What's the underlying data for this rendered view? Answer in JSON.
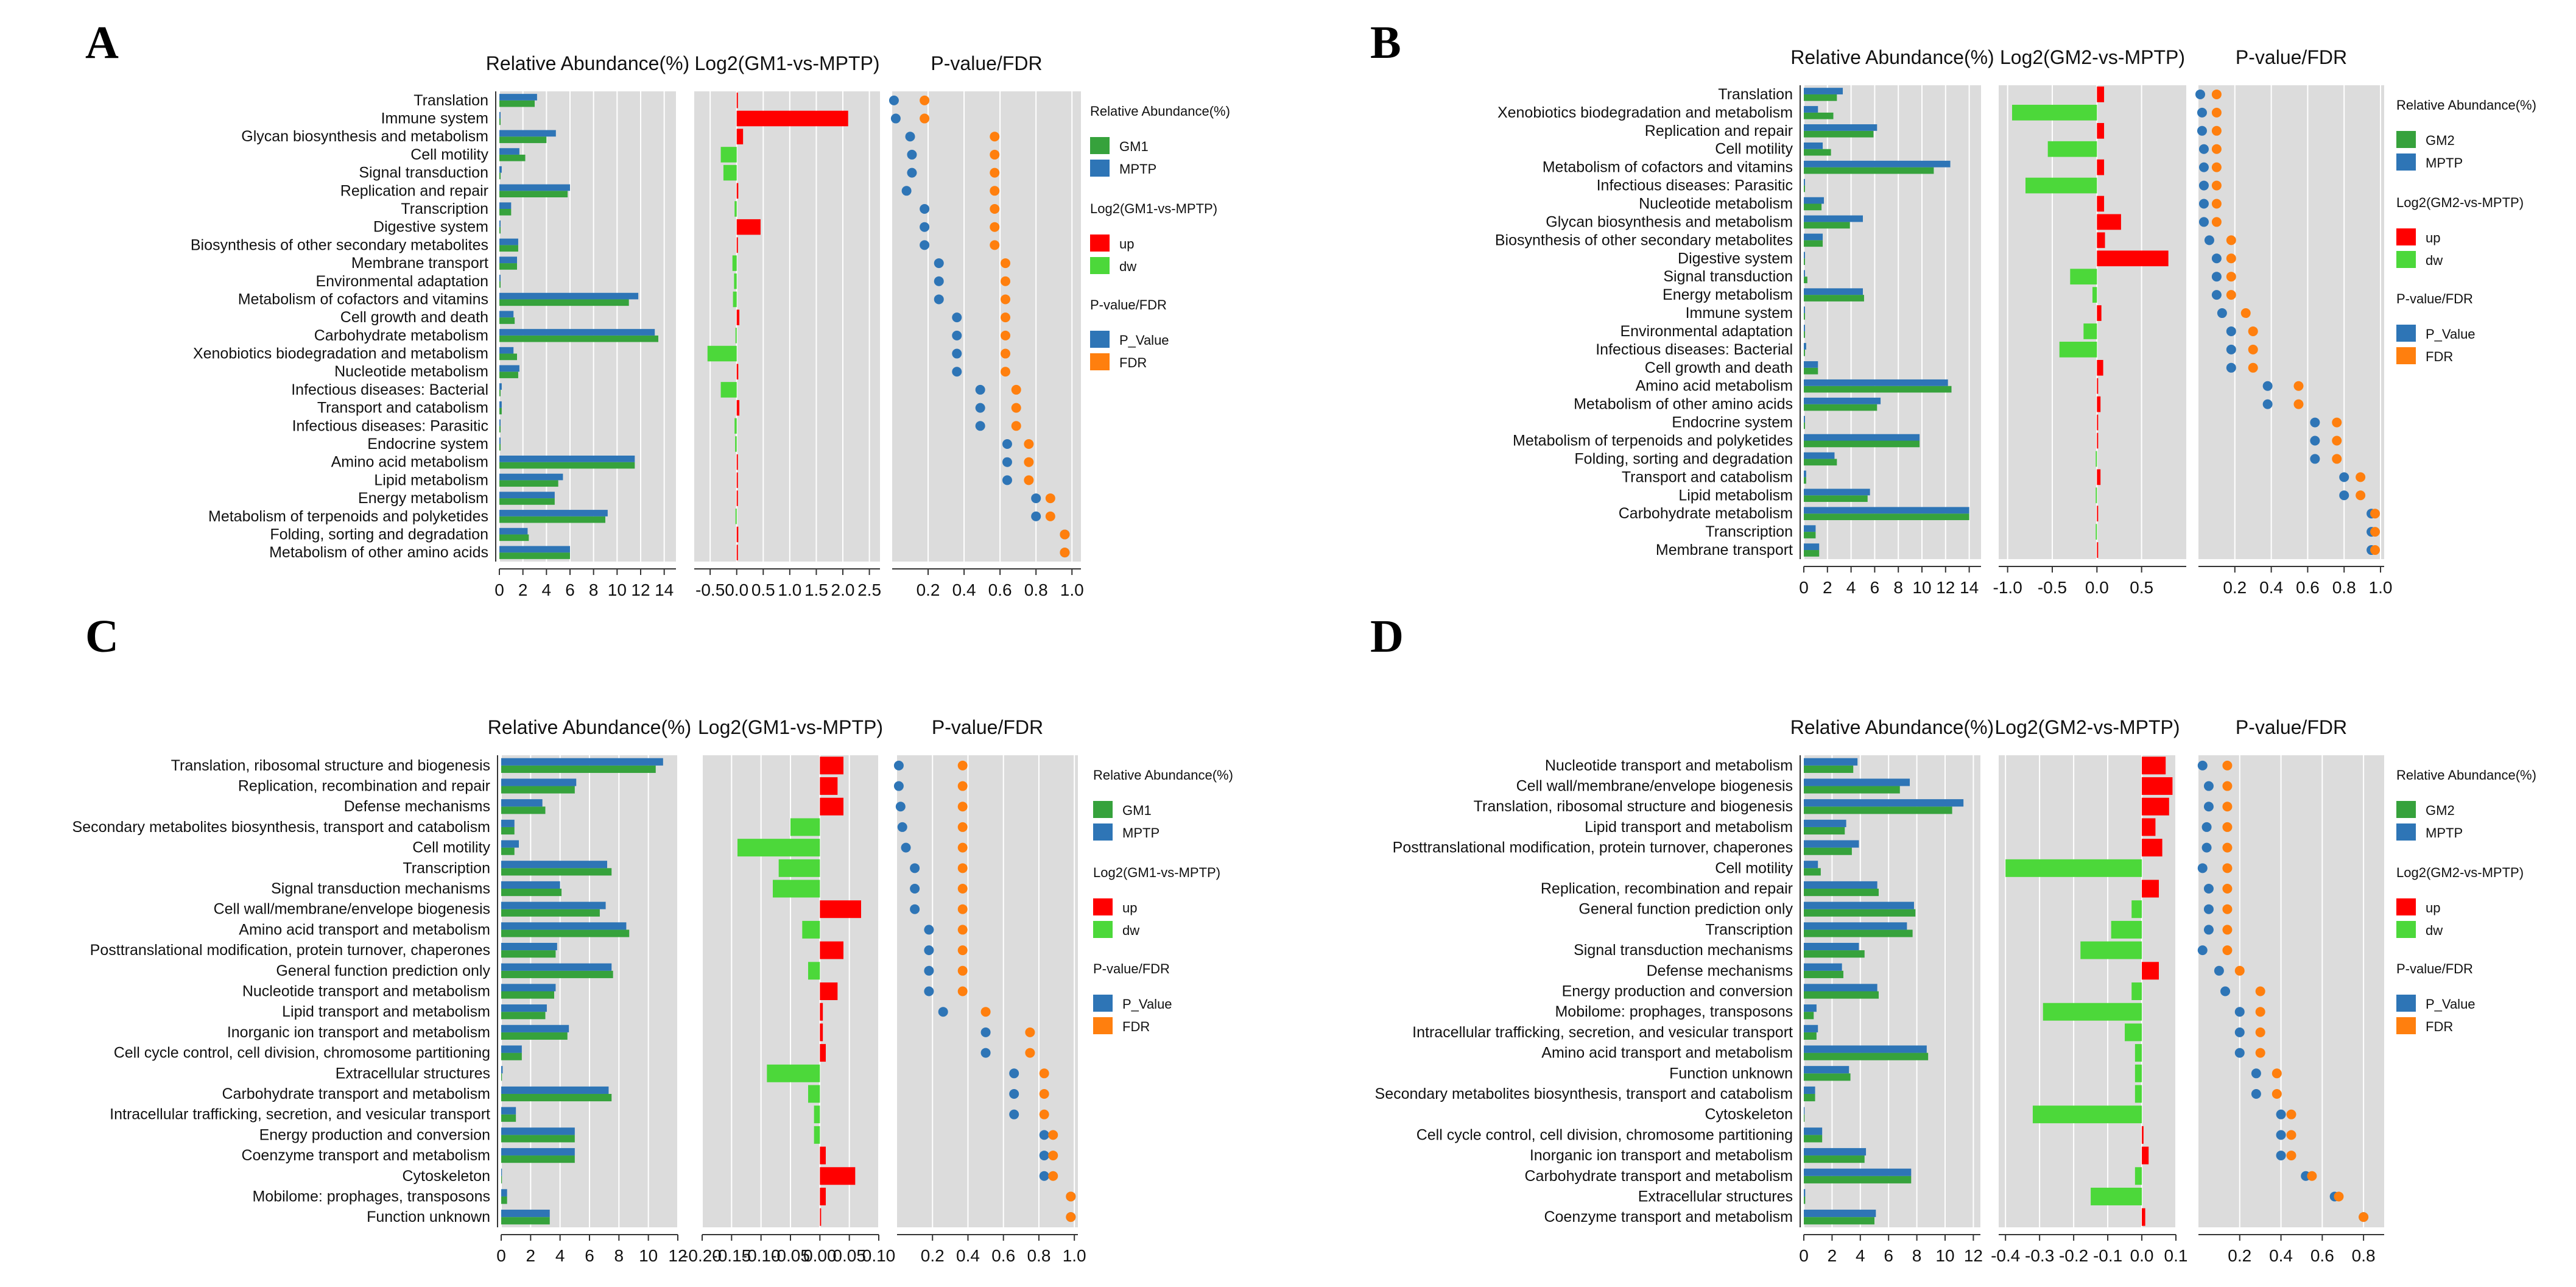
{
  "colors": {
    "groupA": "#36A23C",
    "groupB": "#2E75B6",
    "up": "#FF0000",
    "dw": "#4CD83A",
    "pval": "#2E75B6",
    "fdr": "#FF7F0E",
    "bg": "#DCDCDC"
  },
  "chart_data": [
    {
      "type": "bar",
      "panel": "A",
      "title_abundance": "Relative Abundance(%)",
      "title_log2": "Log2(GM1-vs-MPTP)",
      "title_pval": "P-value/FDR",
      "group_a": "GM1",
      "group_b": "MPTP",
      "categories": [
        "Translation",
        "Immune system",
        "Glycan biosynthesis and metabolism",
        "Cell motility",
        "Signal transduction",
        "Replication and repair",
        "Transcription",
        "Digestive system",
        "Biosynthesis of other secondary metabolites",
        "Membrane transport",
        "Environmental adaptation",
        "Metabolism of cofactors and vitamins",
        "Cell growth and death",
        "Carbohydrate metabolism",
        "Xenobiotics biodegradation and metabolism",
        "Nucleotide metabolism",
        "Infectious diseases: Bacterial",
        "Transport and catabolism",
        "Infectious diseases: Parasitic",
        "Endocrine system",
        "Amino acid metabolism",
        "Lipid metabolism",
        "Energy metabolism",
        "Metabolism of terpenoids and polyketides",
        "Folding, sorting and degradation",
        "Metabolism of other amino acids"
      ],
      "series": [
        {
          "name": "GM1",
          "values": [
            3.0,
            0.1,
            4.0,
            2.2,
            0.1,
            5.8,
            1.0,
            0.1,
            1.6,
            1.5,
            0.1,
            11.0,
            1.3,
            13.5,
            1.5,
            1.6,
            0.1,
            0.2,
            0.1,
            0.1,
            11.5,
            5.0,
            4.7,
            9.0,
            2.5,
            6.0
          ]
        },
        {
          "name": "MPTP",
          "values": [
            3.2,
            0.1,
            4.8,
            1.7,
            0.2,
            6.0,
            1.0,
            0.1,
            1.6,
            1.5,
            0.1,
            11.8,
            1.2,
            13.2,
            1.2,
            1.7,
            0.2,
            0.2,
            0.1,
            0.1,
            11.5,
            5.4,
            4.7,
            9.2,
            2.4,
            6.0
          ]
        },
        {
          "name": "Log2(GM1-vs-MPTP)",
          "values": [
            0.02,
            2.1,
            0.12,
            -0.3,
            -0.25,
            0.03,
            -0.04,
            0.45,
            0.01,
            -0.08,
            -0.05,
            -0.07,
            0.05,
            -0.02,
            -0.55,
            0.03,
            -0.3,
            0.05,
            -0.04,
            -0.03,
            0.0,
            0.01,
            0.0,
            -0.02,
            0.03,
            0.0
          ]
        },
        {
          "name": "P_Value",
          "values": [
            0.01,
            0.02,
            0.1,
            0.11,
            0.11,
            0.08,
            0.18,
            0.18,
            0.18,
            0.26,
            0.26,
            0.26,
            0.36,
            0.36,
            0.36,
            0.36,
            0.49,
            0.49,
            0.49,
            0.64,
            0.64,
            0.64,
            0.8,
            0.8,
            0.96,
            0.96
          ]
        },
        {
          "name": "FDR",
          "values": [
            0.18,
            0.18,
            0.57,
            0.57,
            0.57,
            0.57,
            0.57,
            0.57,
            0.57,
            0.63,
            0.63,
            0.63,
            0.63,
            0.63,
            0.63,
            0.63,
            0.69,
            0.69,
            0.69,
            0.76,
            0.76,
            0.76,
            0.88,
            0.88,
            0.96,
            0.96
          ]
        }
      ],
      "abundance_ticks": [
        "0",
        "2",
        "4",
        "6",
        "8",
        "10",
        "12",
        "14"
      ],
      "abundance_lim": [
        0,
        15
      ],
      "log2_ticks": [
        "-0.5",
        "0.0",
        "0.5",
        "1.0",
        "1.5",
        "2.0",
        "2.5"
      ],
      "log2_lim": [
        -0.8,
        2.7
      ],
      "pval_ticks": [
        "0.2",
        "0.4",
        "0.6",
        "0.8",
        "1.0"
      ],
      "pval_lim": [
        0,
        1.05
      ],
      "legend_abundance_title": "Relative Abundance(%)",
      "legend_log2_title": "Log2(GM1-vs-MPTP)",
      "legend_up": "up",
      "legend_dw": "dw",
      "legend_pval_title": "P-value/FDR",
      "legend_p": "P_Value",
      "legend_fdr": "FDR"
    },
    {
      "type": "bar",
      "panel": "B",
      "title_abundance": "Relative Abundance(%)",
      "title_log2": "Log2(GM2-vs-MPTP)",
      "title_pval": "P-value/FDR",
      "group_a": "GM2",
      "group_b": "MPTP",
      "categories": [
        "Translation",
        "Xenobiotics biodegradation and metabolism",
        "Replication and repair",
        "Cell motility",
        "Metabolism of cofactors and vitamins",
        "Infectious diseases: Parasitic",
        "Nucleotide metabolism",
        "Glycan biosynthesis and metabolism",
        "Biosynthesis of other secondary metabolites",
        "Digestive system",
        "Signal transduction",
        "Energy metabolism",
        "Immune system",
        "Environmental adaptation",
        "Infectious diseases: Bacterial",
        "Cell growth and death",
        "Amino acid metabolism",
        "Metabolism of other amino acids",
        "Endocrine system",
        "Metabolism of terpenoids and polyketides",
        "Folding, sorting and degradation",
        "Transport and catabolism",
        "Lipid metabolism",
        "Carbohydrate metabolism",
        "Transcription",
        "Membrane transport"
      ],
      "series": [
        {
          "name": "GM2",
          "values": [
            2.8,
            2.5,
            5.9,
            2.3,
            11.0,
            0.1,
            1.5,
            3.9,
            1.6,
            0.1,
            0.3,
            5.1,
            0.1,
            0.1,
            0.1,
            1.2,
            12.5,
            6.2,
            0.1,
            9.8,
            2.8,
            0.2,
            5.4,
            14.0,
            1.0,
            1.3
          ]
        },
        {
          "name": "MPTP",
          "values": [
            3.3,
            1.2,
            6.2,
            1.6,
            12.4,
            0.1,
            1.7,
            5.0,
            1.6,
            0.1,
            0.1,
            5.0,
            0.1,
            0.1,
            0.2,
            1.2,
            12.2,
            6.5,
            0.1,
            9.8,
            2.6,
            0.2,
            5.6,
            14.0,
            1.0,
            1.3
          ]
        },
        {
          "name": "Log2(GM2-vs-MPTP)",
          "values": [
            0.08,
            -0.95,
            0.08,
            -0.55,
            0.08,
            -0.8,
            0.08,
            0.27,
            0.09,
            0.8,
            -0.3,
            -0.05,
            0.05,
            -0.15,
            -0.42,
            0.07,
            0.0,
            0.04,
            0.0,
            0.0,
            -0.01,
            0.04,
            -0.01,
            0.0,
            -0.01,
            0.0
          ]
        },
        {
          "name": "P_Value",
          "values": [
            0.01,
            0.02,
            0.02,
            0.03,
            0.03,
            0.03,
            0.03,
            0.03,
            0.06,
            0.1,
            0.1,
            0.1,
            0.13,
            0.18,
            0.18,
            0.18,
            0.38,
            0.38,
            0.64,
            0.64,
            0.64,
            0.8,
            0.8,
            0.95,
            0.95,
            0.95
          ]
        },
        {
          "name": "FDR",
          "values": [
            0.1,
            0.1,
            0.1,
            0.1,
            0.1,
            0.1,
            0.1,
            0.1,
            0.18,
            0.18,
            0.18,
            0.18,
            0.26,
            0.3,
            0.3,
            0.3,
            0.55,
            0.55,
            0.76,
            0.76,
            0.76,
            0.89,
            0.89,
            0.97,
            0.97,
            0.97
          ]
        }
      ],
      "abundance_ticks": [
        "0",
        "2",
        "4",
        "6",
        "8",
        "10",
        "12",
        "14"
      ],
      "abundance_lim": [
        0,
        15
      ],
      "log2_ticks": [
        "-1.0",
        "-0.5",
        "0.0",
        "0.5"
      ],
      "log2_lim": [
        -1.1,
        1.0
      ],
      "pval_ticks": [
        "0.2",
        "0.4",
        "0.6",
        "0.8",
        "1.0"
      ],
      "pval_lim": [
        0,
        1.02
      ],
      "legend_abundance_title": "Relative Abundance(%)",
      "legend_log2_title": "Log2(GM2-vs-MPTP)",
      "legend_up": "up",
      "legend_dw": "dw",
      "legend_pval_title": "P-value/FDR",
      "legend_p": "P_Value",
      "legend_fdr": "FDR"
    },
    {
      "type": "bar",
      "panel": "C",
      "title_abundance": "Relative Abundance(%)",
      "title_log2": "Log2(GM1-vs-MPTP)",
      "title_pval": "P-value/FDR",
      "group_a": "GM1",
      "group_b": "MPTP",
      "categories": [
        "Translation, ribosomal structure and biogenesis",
        "Replication, recombination and repair",
        "Defense mechanisms",
        "Secondary metabolites biosynthesis, transport and catabolism",
        "Cell motility",
        "Transcription",
        "Signal transduction mechanisms",
        "Cell wall/membrane/envelope biogenesis",
        "Amino acid transport and metabolism",
        "Posttranslational modification, protein turnover, chaperones",
        "General function prediction only",
        "Nucleotide transport and metabolism",
        "Lipid transport and metabolism",
        "Inorganic ion transport and metabolism",
        "Cell cycle control, cell division, chromosome partitioning",
        "Extracellular structures",
        "Carbohydrate transport and metabolism",
        "Intracellular trafficking, secretion, and vesicular transport",
        "Energy production and conversion",
        "Coenzyme transport and metabolism",
        "Cytoskeleton",
        "Mobilome: prophages, transposons",
        "Function unknown"
      ],
      "series": [
        {
          "name": "GM1",
          "values": [
            10.5,
            5.0,
            3.0,
            0.9,
            0.9,
            7.5,
            4.1,
            6.7,
            8.7,
            3.7,
            7.6,
            3.6,
            3.0,
            4.5,
            1.4,
            0.05,
            7.5,
            1.0,
            5.0,
            5.0,
            0.05,
            0.4,
            3.3
          ]
        },
        {
          "name": "MPTP",
          "values": [
            11.0,
            5.1,
            2.8,
            0.9,
            1.2,
            7.2,
            4.0,
            7.1,
            8.5,
            3.8,
            7.5,
            3.7,
            3.1,
            4.6,
            1.4,
            0.1,
            7.3,
            1.0,
            5.0,
            5.0,
            0.05,
            0.4,
            3.3
          ]
        },
        {
          "name": "Log2(GM1-vs-MPTP)",
          "values": [
            0.04,
            0.03,
            0.04,
            -0.05,
            -0.14,
            -0.07,
            -0.08,
            0.07,
            -0.03,
            0.04,
            -0.02,
            0.03,
            0.005,
            0.005,
            0.01,
            -0.09,
            -0.02,
            -0.01,
            -0.01,
            0.01,
            0.06,
            0.01,
            0.0
          ]
        },
        {
          "name": "P_Value",
          "values": [
            0.01,
            0.01,
            0.02,
            0.03,
            0.05,
            0.1,
            0.1,
            0.1,
            0.18,
            0.18,
            0.18,
            0.18,
            0.26,
            0.5,
            0.5,
            0.66,
            0.66,
            0.66,
            0.83,
            0.83,
            0.83,
            0.98,
            0.98
          ]
        },
        {
          "name": "FDR",
          "values": [
            0.37,
            0.37,
            0.37,
            0.37,
            0.37,
            0.37,
            0.37,
            0.37,
            0.37,
            0.37,
            0.37,
            0.37,
            0.5,
            0.75,
            0.75,
            0.83,
            0.83,
            0.83,
            0.88,
            0.88,
            0.88,
            0.98,
            0.98
          ]
        }
      ],
      "abundance_ticks": [
        "0",
        "2",
        "4",
        "6",
        "8",
        "10",
        "12"
      ],
      "abundance_lim": [
        0,
        12
      ],
      "log2_ticks": [
        "-0.20",
        "-0.15",
        "-0.10",
        "-0.05",
        "0.00",
        "0.05",
        "0.10"
      ],
      "log2_lim": [
        -0.2,
        0.1
      ],
      "pval_ticks": [
        "0.2",
        "0.4",
        "0.6",
        "0.8",
        "1.0"
      ],
      "pval_lim": [
        0,
        1.02
      ],
      "legend_abundance_title": "Relative Abundance(%)",
      "legend_log2_title": "Log2(GM1-vs-MPTP)",
      "legend_up": "up",
      "legend_dw": "dw",
      "legend_pval_title": "P-value/FDR",
      "legend_p": "P_Value",
      "legend_fdr": "FDR"
    },
    {
      "type": "bar",
      "panel": "D",
      "title_abundance": "Relative Abundance(%)",
      "title_log2": "Log2(GM2-vs-MPTP)",
      "title_pval": "P-value/FDR",
      "group_a": "GM2",
      "group_b": "MPTP",
      "categories": [
        "Nucleotide transport and metabolism",
        "Cell wall/membrane/envelope biogenesis",
        "Translation, ribosomal structure and biogenesis",
        "Lipid transport and metabolism",
        "Posttranslational modification, protein turnover, chaperones",
        "Cell motility",
        "Replication, recombination and repair",
        "General function prediction only",
        "Transcription",
        "Signal transduction mechanisms",
        "Defense mechanisms",
        "Energy production and conversion",
        "Mobilome: prophages, transposons",
        "Intracellular trafficking, secretion, and vesicular transport",
        "Amino acid transport and metabolism",
        "Function unknown",
        "Secondary metabolites biosynthesis, transport and catabolism",
        "Cytoskeleton",
        "Cell cycle control, cell division, chromosome partitioning",
        "Inorganic ion transport and metabolism",
        "Carbohydrate transport and metabolism",
        "Extracellular structures",
        "Coenzyme transport and metabolism"
      ],
      "series": [
        {
          "name": "GM2",
          "values": [
            3.5,
            6.8,
            10.5,
            2.9,
            3.4,
            1.2,
            5.3,
            7.9,
            7.7,
            4.3,
            2.8,
            5.3,
            0.7,
            0.9,
            8.8,
            3.3,
            0.8,
            0.05,
            1.3,
            4.3,
            7.6,
            0.1,
            5.0
          ]
        },
        {
          "name": "MPTP",
          "values": [
            3.8,
            7.5,
            11.3,
            3.0,
            3.9,
            1.0,
            5.2,
            7.8,
            7.3,
            3.9,
            2.7,
            5.2,
            0.9,
            1.0,
            8.7,
            3.2,
            0.8,
            0.05,
            1.3,
            4.4,
            7.6,
            0.1,
            5.1
          ]
        },
        {
          "name": "Log2(GM2-vs-MPTP)",
          "values": [
            0.07,
            0.09,
            0.08,
            0.04,
            0.06,
            -0.4,
            0.05,
            -0.03,
            -0.09,
            -0.18,
            0.05,
            -0.03,
            -0.29,
            -0.05,
            -0.02,
            -0.02,
            -0.02,
            -0.32,
            0.005,
            0.02,
            -0.02,
            -0.15,
            0.01
          ]
        },
        {
          "name": "P_Value",
          "values": [
            0.02,
            0.05,
            0.05,
            0.04,
            0.04,
            0.02,
            0.05,
            0.05,
            0.05,
            0.02,
            0.1,
            0.13,
            0.2,
            0.2,
            0.2,
            0.28,
            0.28,
            0.4,
            0.4,
            0.4,
            0.52,
            0.66,
            0.8
          ]
        },
        {
          "name": "FDR",
          "values": [
            0.14,
            0.14,
            0.14,
            0.14,
            0.14,
            0.14,
            0.14,
            0.14,
            0.14,
            0.14,
            0.2,
            0.3,
            0.3,
            0.3,
            0.3,
            0.38,
            0.38,
            0.45,
            0.45,
            0.45,
            0.55,
            0.68,
            0.8
          ]
        }
      ],
      "abundance_ticks": [
        "0",
        "2",
        "4",
        "6",
        "8",
        "10",
        "12"
      ],
      "abundance_lim": [
        0,
        12.5
      ],
      "log2_ticks": [
        "-0.4",
        "-0.3",
        "-0.2",
        "-0.1",
        "0.0",
        "0.1"
      ],
      "log2_lim": [
        -0.42,
        0.1
      ],
      "pval_ticks": [
        "0.2",
        "0.4",
        "0.6",
        "0.8"
      ],
      "pval_lim": [
        0,
        0.9
      ],
      "legend_abundance_title": "Relative Abundance(%)",
      "legend_log2_title": "Log2(GM2-vs-MPTP)",
      "legend_up": "up",
      "legend_dw": "dw",
      "legend_pval_title": "P-value/FDR",
      "legend_p": "P_Value",
      "legend_fdr": "FDR"
    }
  ]
}
